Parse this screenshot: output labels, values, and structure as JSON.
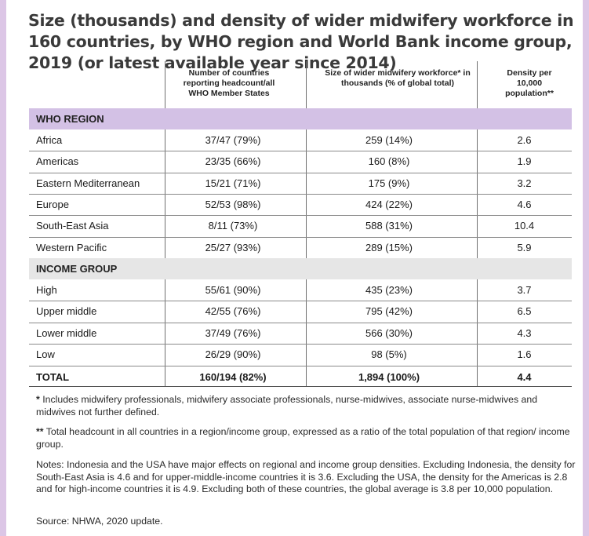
{
  "title": "Size (thousands) and density of wider midwifery workforce in 160 countries, by WHO region and World Bank income group, 2019 (or latest available year since 2014)",
  "headers": {
    "countries": "Number of countries reporting headcount/all WHO Member States",
    "size": "Size of wider midwifery workforce* in thousands (% of global total)",
    "density": "Density per 10,000 population**"
  },
  "who_region": {
    "label": "WHO REGION",
    "rows": [
      {
        "name": "Africa",
        "countries": "37/47 (79%)",
        "size": "259 (14%)",
        "density": "2.6"
      },
      {
        "name": "Americas",
        "countries": "23/35 (66%)",
        "size": "160 (8%)",
        "density": "1.9"
      },
      {
        "name": "Eastern Mediterranean",
        "countries": "15/21 (71%)",
        "size": "175 (9%)",
        "density": "3.2"
      },
      {
        "name": "Europe",
        "countries": "52/53 (98%)",
        "size": "424 (22%)",
        "density": "4.6"
      },
      {
        "name": "South-East Asia",
        "countries": "8/11 (73%)",
        "size": "588 (31%)",
        "density": "10.4"
      },
      {
        "name": "Western Pacific",
        "countries": "25/27 (93%)",
        "size": "289 (15%)",
        "density": "5.9"
      }
    ]
  },
  "income_group": {
    "label": "INCOME GROUP",
    "rows": [
      {
        "name": "High",
        "countries": "55/61 (90%)",
        "size": "435 (23%)",
        "density": "3.7"
      },
      {
        "name": "Upper middle",
        "countries": "42/55 (76%)",
        "size": "795 (42%)",
        "density": "6.5"
      },
      {
        "name": "Lower middle",
        "countries": "37/49 (76%)",
        "size": "566 (30%)",
        "density": "4.3"
      },
      {
        "name": "Low",
        "countries": "26/29 (90%)",
        "size": "98 (5%)",
        "density": "1.6"
      }
    ]
  },
  "total": {
    "name": "TOTAL",
    "countries": "160/194 (82%)",
    "size": "1,894 (100%)",
    "density": "4.4"
  },
  "footnotes": {
    "single_mark": "*",
    "single": "Includes midwifery professionals, midwifery associate professionals, nurse-midwives, associate nurse-midwives and midwives not further defined.",
    "double_mark": "**",
    "double": "Total headcount in all countries in a region/income group, expressed as a ratio of the total population of that region/ income group.",
    "notes": "Notes: Indonesia and the USA have major effects on regional and income group densities. Excluding Indonesia, the density for South-East Asia is 4.6 and for upper-middle-income countries it is 3.6. Excluding the USA, the density for the Americas is 2.8 and for high-income countries it is 4.9. Excluding both of these countries, the global average is 3.8 per 10,000 population.",
    "source": "Source: NHWA, 2020 update."
  }
}
